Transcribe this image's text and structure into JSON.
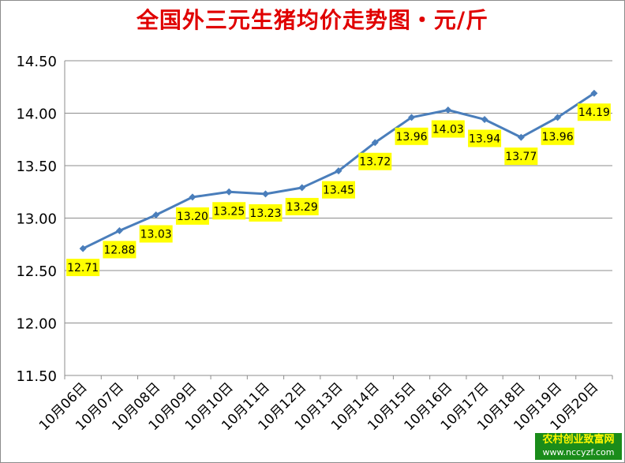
{
  "chart_data": {
    "type": "line",
    "title": "全国外三元生猪均价走势图・元/斤",
    "xlabel": "",
    "ylabel": "",
    "ylim": [
      11.5,
      14.5
    ],
    "yticks": [
      11.5,
      12.0,
      12.5,
      13.0,
      13.5,
      14.0,
      14.5
    ],
    "ytick_labels": [
      "11.50",
      "12.00",
      "12.50",
      "13.00",
      "13.50",
      "14.00",
      "14.50"
    ],
    "grid": true,
    "legend": "none",
    "categories": [
      "10月06日",
      "10月07日",
      "10月08日",
      "10月09日",
      "10月10日",
      "10月11日",
      "10月12日",
      "10月13日",
      "10月14日",
      "10月15日",
      "10月16日",
      "10月17日",
      "10月18日",
      "10月19日",
      "10月20日"
    ],
    "series": [
      {
        "values": [
          12.71,
          12.88,
          13.03,
          13.2,
          13.25,
          13.23,
          13.29,
          13.45,
          13.72,
          13.96,
          14.03,
          13.94,
          13.77,
          13.96,
          14.19
        ],
        "labels": [
          "12.71",
          "12.88",
          "13.03",
          "13.20",
          "13.25",
          "13.23",
          "13.29",
          "13.45",
          "13.72",
          "13.96",
          "14.03",
          "13.94",
          "13.77",
          "13.96",
          "14.19"
        ]
      }
    ],
    "colors": {
      "line": "#4a7ebb",
      "label_bg": "#ffff00",
      "grid": "#8c8c8c",
      "title": "#e00000"
    }
  },
  "watermark": {
    "line1": "农村创业致富网",
    "line2": "www.nccyzf.com"
  }
}
